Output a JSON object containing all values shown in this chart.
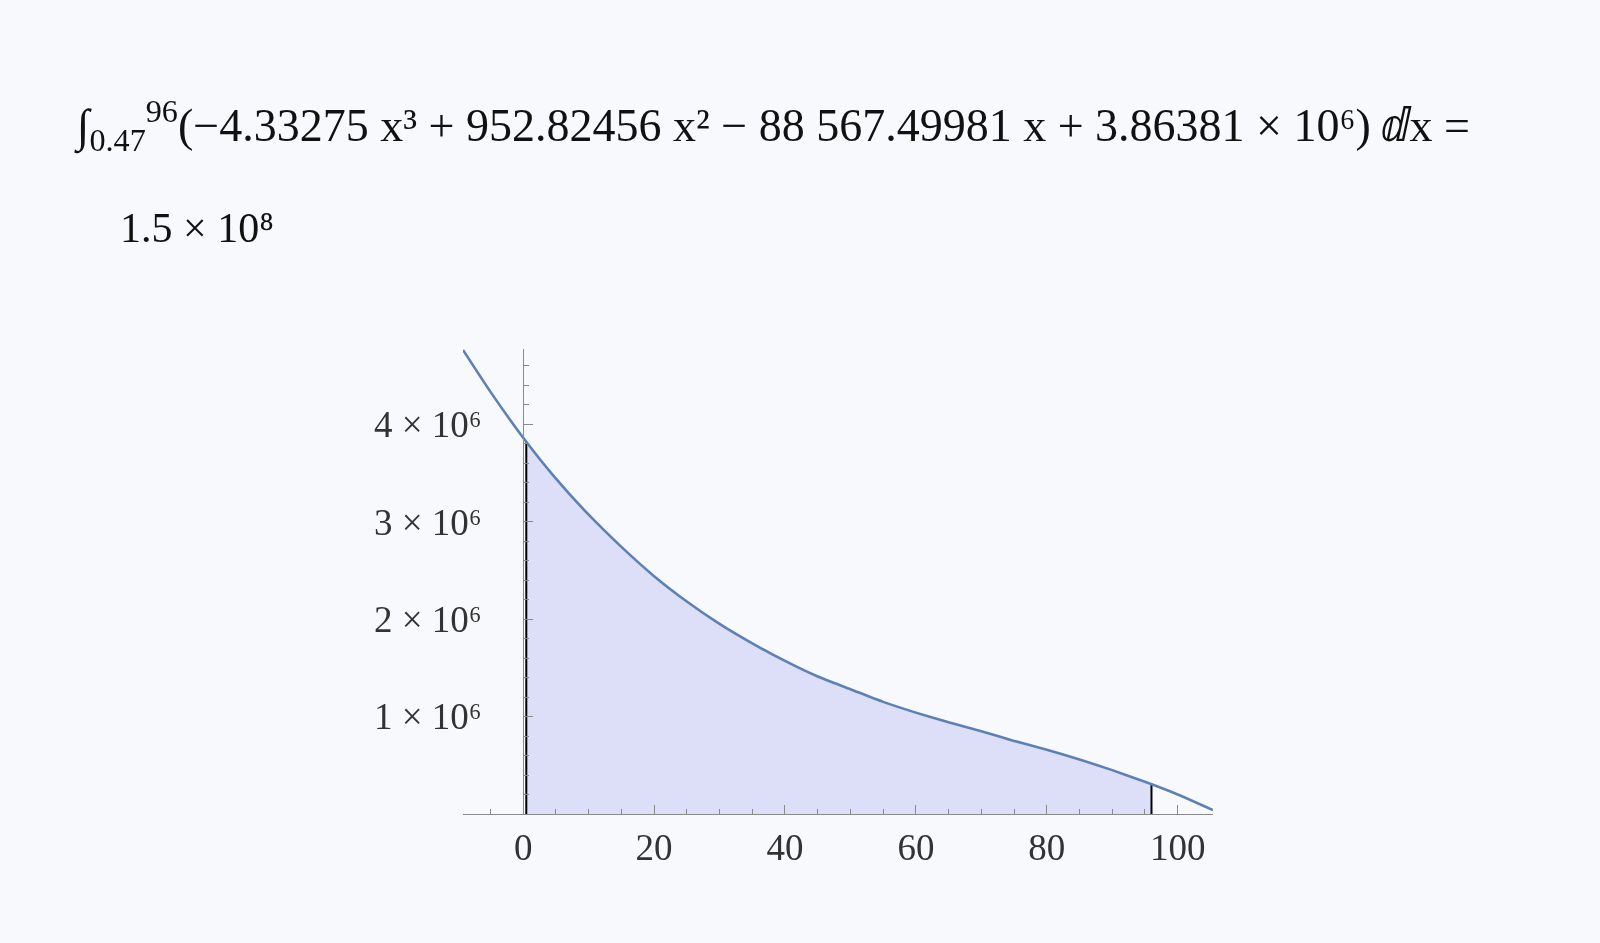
{
  "chart_data": {
    "type": "line",
    "title": "∫$_{0.47}$$^{96}$(−4.33275 x³ + 952.82456 x² − 88 567.49981 x + 3.86381 × 10⁶) ⅆx =",
    "subtitle": "1.5 × 10⁸",
    "series": [
      {
        "type": "area",
        "color": "#dcdff7",
        "x": [
          0.47,
          5,
          10,
          15,
          20,
          25,
          30,
          35,
          40,
          45,
          50,
          55,
          60,
          65,
          70,
          75,
          80,
          85,
          90,
          95,
          96
        ],
        "values": [
          3820000,
          3440000,
          3070000,
          2740000,
          2440000,
          2180000,
          1950000,
          1750000,
          1570000,
          1410000,
          1280000,
          1150000,
          1040000,
          940000,
          850000,
          750000,
          660000,
          560000,
          450000,
          330000,
          310000
        ]
      },
      {
        "color": "#000000",
        "x": [
          0.47,
          0.47
        ],
        "values": [
          0,
          3820000
        ]
      },
      {
        "color": "#000000",
        "x": [
          96,
          96
        ],
        "values": [
          0,
          310000
        ]
      },
      {
        "color": "#5e81b5",
        "x": [
          -9.2,
          -5,
          0,
          5,
          10,
          15,
          20,
          25,
          30,
          35,
          40,
          45,
          50,
          55,
          60,
          65,
          70,
          75,
          80,
          85,
          90,
          95,
          100,
          105.4
        ],
        "values": [
          4760000,
          4330000,
          3860000,
          3440000,
          3070000,
          2740000,
          2440000,
          2180000,
          1950000,
          1750000,
          1570000,
          1410000,
          1280000,
          1150000,
          1040000,
          940000,
          850000,
          750000,
          660000,
          560000,
          450000,
          330000,
          200000,
          40000
        ]
      }
    ],
    "xlim": [
      -9.2,
      105.4
    ],
    "ylim": [
      0,
      4770000
    ],
    "xticks": [
      {
        "value": -5,
        "label": null
      },
      0,
      {
        "value": 5,
        "label": null
      },
      {
        "value": 10,
        "label": null
      },
      {
        "value": 15,
        "label": null
      },
      20,
      {
        "value": 25,
        "label": null
      },
      {
        "value": 30,
        "label": null
      },
      {
        "value": 35,
        "label": null
      },
      40,
      {
        "value": 45,
        "label": null
      },
      {
        "value": 50,
        "label": null
      },
      {
        "value": 55,
        "label": null
      },
      60,
      {
        "value": 65,
        "label": null
      },
      {
        "value": 70,
        "label": null
      },
      {
        "value": 75,
        "label": null
      },
      80,
      {
        "value": 85,
        "label": null
      },
      {
        "value": 90,
        "label": null
      },
      {
        "value": 95,
        "label": null
      },
      100
    ],
    "yticks": [
      {
        "value": 200000,
        "label": null
      },
      {
        "value": 400000,
        "label": null
      },
      {
        "value": 600000,
        "label": null
      },
      {
        "value": 800000,
        "label": null
      },
      {
        "value": 1000000,
        "label": "1 × 10⁶"
      },
      {
        "value": 1200000,
        "label": null
      },
      {
        "value": 1400000,
        "label": null
      },
      {
        "value": 1600000,
        "label": null
      },
      {
        "value": 1800000,
        "label": null
      },
      {
        "value": 2000000,
        "label": "2 × 10⁶"
      },
      {
        "value": 2200000,
        "label": null
      },
      {
        "value": 2400000,
        "label": null
      },
      {
        "value": 2600000,
        "label": null
      },
      {
        "value": 2800000,
        "label": null
      },
      {
        "value": 3000000,
        "label": "3 × 10⁶"
      },
      {
        "value": 3200000,
        "label": null
      },
      {
        "value": 3400000,
        "label": null
      },
      {
        "value": 3600000,
        "label": null
      },
      {
        "value": 3800000,
        "label": null
      },
      {
        "value": 4000000,
        "label": "4 × 10⁶"
      },
      {
        "value": 4200000,
        "label": null
      },
      {
        "value": 4400000,
        "label": null
      },
      {
        "value": 4600000,
        "label": null
      }
    ]
  }
}
